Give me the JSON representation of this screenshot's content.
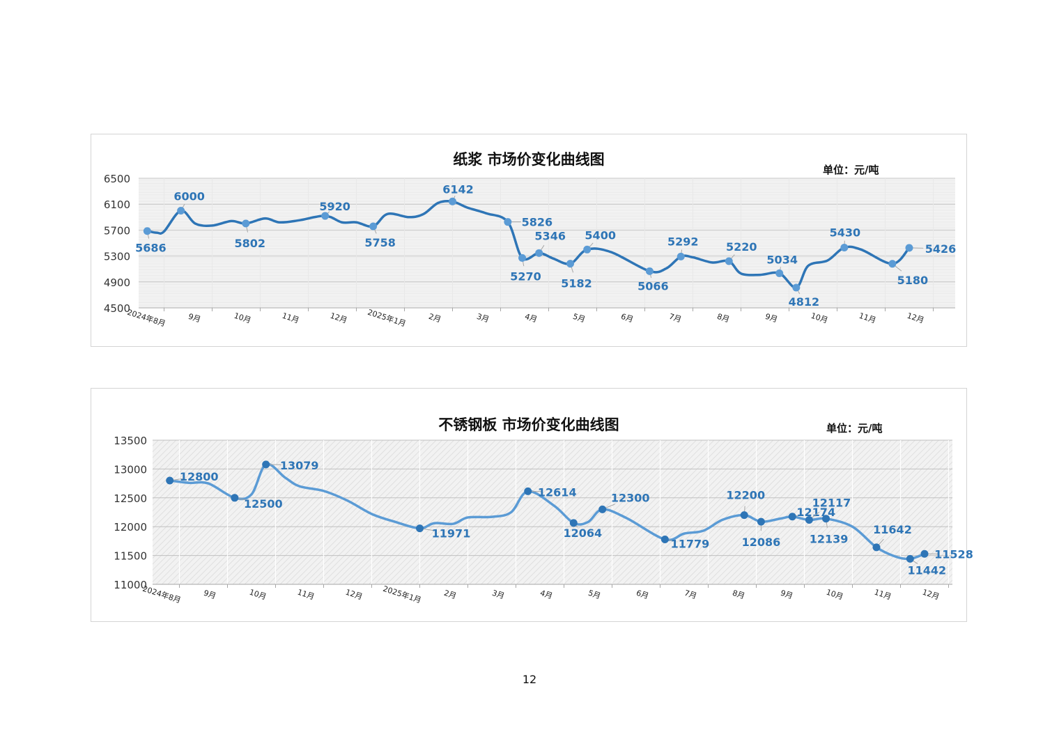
{
  "page": {
    "number": "12"
  },
  "chart_data": [
    {
      "type": "line",
      "title": "纸浆 市场价变化曲线图",
      "unit": "单位：元/吨",
      "ylim": [
        4500,
        6500
      ],
      "yticks": [
        "6500",
        "6100",
        "5700",
        "5300",
        "4900",
        "4500"
      ],
      "x_tick_labels": [
        "2024年8月",
        "9月",
        "10月",
        "11月",
        "12月",
        "2025年1月",
        "2月",
        "3月",
        "4月",
        "5月",
        "6月",
        "7月",
        "8月",
        "9月",
        "10月",
        "11月",
        "12月"
      ],
      "grid": true,
      "line_color": "#2e75b6",
      "marker_color": "#5b9bd5",
      "label_color": "#2e75b6",
      "series": [
        {
          "values": [
            {
              "x": 0.15,
              "y": 5686,
              "label": "5686"
            },
            {
              "x": 0.85,
              "y": 6000,
              "label": "6000"
            },
            {
              "x": 2.2,
              "y": 5802,
              "label": "5802"
            },
            {
              "x": 3.85,
              "y": 5920,
              "label": "5920"
            },
            {
              "x": 4.85,
              "y": 5758,
              "label": "5758"
            },
            {
              "x": 6.5,
              "y": 6142,
              "label": "6142"
            },
            {
              "x": 7.65,
              "y": 5826,
              "label": "5826"
            },
            {
              "x": 7.95,
              "y": 5270,
              "label": "5270"
            },
            {
              "x": 8.3,
              "y": 5346,
              "label": "5346"
            },
            {
              "x": 8.95,
              "y": 5182,
              "label": "5182"
            },
            {
              "x": 9.3,
              "y": 5400,
              "label": "5400"
            },
            {
              "x": 10.6,
              "y": 5066,
              "label": "5066"
            },
            {
              "x": 11.25,
              "y": 5292,
              "label": "5292"
            },
            {
              "x": 12.25,
              "y": 5220,
              "label": "5220"
            },
            {
              "x": 13.3,
              "y": 5034,
              "label": "5034"
            },
            {
              "x": 13.65,
              "y": 4812,
              "label": "4812"
            },
            {
              "x": 14.65,
              "y": 5430,
              "label": "5430"
            },
            {
              "x": 15.65,
              "y": 5180,
              "label": "5180"
            },
            {
              "x": 16.0,
              "y": 5426,
              "label": "5426"
            }
          ],
          "curve": [
            [
              0.15,
              5686
            ],
            [
              0.35,
              5660
            ],
            [
              0.5,
              5680
            ],
            [
              0.85,
              6000
            ],
            [
              1.15,
              5800
            ],
            [
              1.5,
              5770
            ],
            [
              1.9,
              5840
            ],
            [
              2.2,
              5802
            ],
            [
              2.6,
              5880
            ],
            [
              2.9,
              5820
            ],
            [
              3.3,
              5850
            ],
            [
              3.85,
              5920
            ],
            [
              4.2,
              5820
            ],
            [
              4.5,
              5820
            ],
            [
              4.85,
              5758
            ],
            [
              5.15,
              5950
            ],
            [
              5.6,
              5900
            ],
            [
              5.9,
              5950
            ],
            [
              6.2,
              6120
            ],
            [
              6.5,
              6142
            ],
            [
              6.8,
              6050
            ],
            [
              7.2,
              5960
            ],
            [
              7.65,
              5826
            ],
            [
              7.95,
              5270
            ],
            [
              8.3,
              5346
            ],
            [
              8.6,
              5260
            ],
            [
              8.95,
              5182
            ],
            [
              9.3,
              5400
            ],
            [
              9.8,
              5360
            ],
            [
              10.6,
              5066
            ],
            [
              10.95,
              5110
            ],
            [
              11.25,
              5292
            ],
            [
              11.5,
              5280
            ],
            [
              11.9,
              5200
            ],
            [
              12.25,
              5220
            ],
            [
              12.5,
              5030
            ],
            [
              12.9,
              5010
            ],
            [
              13.3,
              5034
            ],
            [
              13.65,
              4812
            ],
            [
              13.9,
              5150
            ],
            [
              14.3,
              5230
            ],
            [
              14.65,
              5430
            ],
            [
              15.0,
              5400
            ],
            [
              15.65,
              5180
            ],
            [
              16.0,
              5426
            ]
          ]
        }
      ]
    },
    {
      "type": "line",
      "title": "不锈钢板 市场价变化曲线图",
      "unit": "单位：元/吨",
      "ylim": [
        11000,
        13500
      ],
      "yticks": [
        "13500",
        "13000",
        "12500",
        "12000",
        "11500",
        "11000"
      ],
      "x_tick_labels": [
        "2024年8月",
        "9月",
        "10月",
        "11月",
        "12月",
        "2025年1月",
        "2月",
        "3月",
        "4月",
        "5月",
        "6月",
        "7月",
        "8月",
        "9月",
        "10月",
        "11月",
        "12月"
      ],
      "grid": true,
      "line_color": "#5b9bd5",
      "marker_color": "#2e75b6",
      "label_color": "#2e75b6",
      "series": [
        {
          "values": [
            {
              "x": 0.3,
              "y": 12800,
              "label": "12800"
            },
            {
              "x": 1.65,
              "y": 12500,
              "label": "12500"
            },
            {
              "x": 2.3,
              "y": 13079,
              "label": "13079"
            },
            {
              "x": 5.5,
              "y": 11971,
              "label": "11971"
            },
            {
              "x": 7.75,
              "y": 12614,
              "label": "12614"
            },
            {
              "x": 8.7,
              "y": 12064,
              "label": "12064"
            },
            {
              "x": 9.3,
              "y": 12300,
              "label": "12300"
            },
            {
              "x": 10.6,
              "y": 11779,
              "label": "11779"
            },
            {
              "x": 12.25,
              "y": 12200,
              "label": "12200"
            },
            {
              "x": 12.6,
              "y": 12086,
              "label": "12086"
            },
            {
              "x": 13.25,
              "y": 12174,
              "label": "12174"
            },
            {
              "x": 13.6,
              "y": 12117,
              "label": "12117"
            },
            {
              "x": 13.95,
              "y": 12139,
              "label": "12139"
            },
            {
              "x": 15.0,
              "y": 11642,
              "label": "11642"
            },
            {
              "x": 15.7,
              "y": 11442,
              "label": "11442"
            },
            {
              "x": 16.0,
              "y": 11528,
              "label": "11528"
            }
          ],
          "curve": [
            [
              0.3,
              12800
            ],
            [
              0.7,
              12760
            ],
            [
              1.1,
              12750
            ],
            [
              1.65,
              12500
            ],
            [
              2.0,
              12560
            ],
            [
              2.3,
              13079
            ],
            [
              2.7,
              12850
            ],
            [
              3.0,
              12700
            ],
            [
              3.5,
              12620
            ],
            [
              4.0,
              12450
            ],
            [
              4.5,
              12220
            ],
            [
              5.0,
              12080
            ],
            [
              5.5,
              11971
            ],
            [
              5.8,
              12060
            ],
            [
              6.2,
              12050
            ],
            [
              6.5,
              12160
            ],
            [
              7.0,
              12170
            ],
            [
              7.4,
              12250
            ],
            [
              7.75,
              12614
            ],
            [
              8.3,
              12360
            ],
            [
              8.7,
              12064
            ],
            [
              9.0,
              12080
            ],
            [
              9.3,
              12300
            ],
            [
              9.8,
              12150
            ],
            [
              10.6,
              11779
            ],
            [
              11.0,
              11880
            ],
            [
              11.4,
              11930
            ],
            [
              11.8,
              12120
            ],
            [
              12.25,
              12200
            ],
            [
              12.6,
              12086
            ],
            [
              13.0,
              12140
            ],
            [
              13.25,
              12174
            ],
            [
              13.6,
              12117
            ],
            [
              13.95,
              12139
            ],
            [
              14.5,
              12000
            ],
            [
              15.0,
              11642
            ],
            [
              15.4,
              11480
            ],
            [
              15.7,
              11442
            ],
            [
              16.0,
              11528
            ]
          ]
        }
      ]
    }
  ]
}
